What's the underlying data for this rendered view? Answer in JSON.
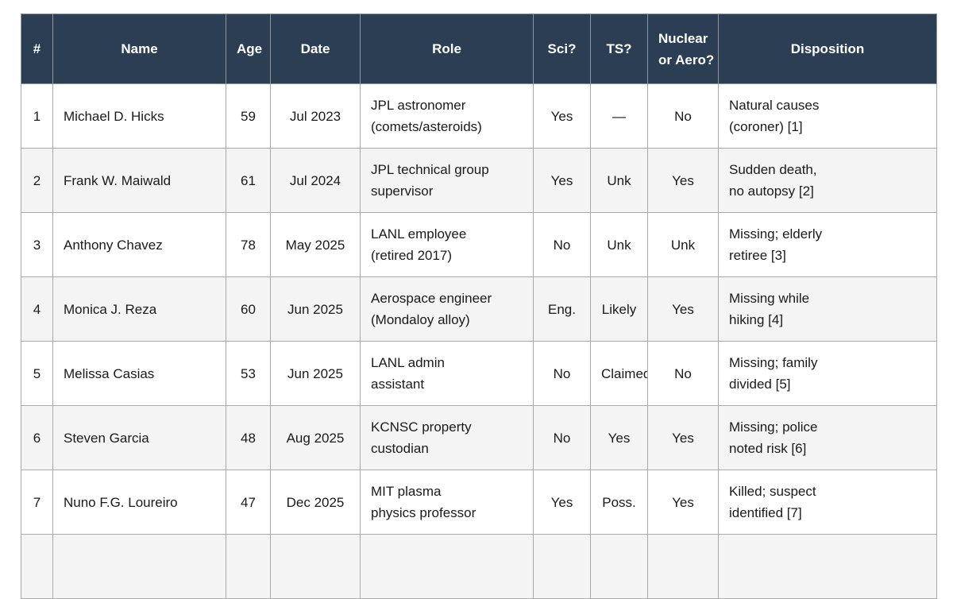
{
  "table": {
    "columns": [
      "#",
      "Name",
      "Age",
      "Date",
      "Role",
      "Sci?",
      "TS?",
      [
        "Nuclear",
        "or Aero?"
      ],
      "Disposition"
    ],
    "rows": [
      [
        1,
        "Michael D. Hicks",
        59,
        "Jul 2023",
        [
          "JPL astronomer",
          "(comets/asteroids)"
        ],
        "Yes",
        "—",
        "No",
        [
          "Natural causes",
          "(coroner) [1]"
        ]
      ],
      [
        2,
        "Frank W. Maiwald",
        61,
        "Jul 2024",
        [
          "JPL technical group",
          "supervisor"
        ],
        "Yes",
        "Unk",
        "Yes",
        [
          "Sudden death,",
          "no autopsy [2]"
        ]
      ],
      [
        3,
        "Anthony Chavez",
        78,
        "May 2025",
        [
          "LANL employee",
          "(retired 2017)"
        ],
        "No",
        "Unk",
        "Unk",
        [
          "Missing; elderly",
          "retiree [3]"
        ]
      ],
      [
        4,
        "Monica J. Reza",
        60,
        "Jun 2025",
        [
          "Aerospace engineer",
          "(Mondaloy alloy)"
        ],
        "Eng.",
        "Likely",
        "Yes",
        [
          "Missing while",
          "hiking [4]"
        ]
      ],
      [
        5,
        "Melissa Casias",
        53,
        "Jun 2025",
        [
          "LANL admin",
          "assistant"
        ],
        "No",
        "Claimed",
        "No",
        [
          "Missing; family",
          "divided [5]"
        ]
      ],
      [
        6,
        "Steven Garcia",
        48,
        "Aug 2025",
        [
          "KCNSC property",
          "custodian"
        ],
        "No",
        "Yes",
        "Yes",
        [
          "Missing; police",
          "noted risk [6]"
        ]
      ],
      [
        7,
        "Nuno F.G. Loureiro",
        47,
        "Dec 2025",
        [
          "MIT plasma",
          "physics professor"
        ],
        "Yes",
        "Poss.",
        "Yes",
        [
          "Killed; suspect",
          "identified [7]"
        ]
      ]
    ]
  }
}
